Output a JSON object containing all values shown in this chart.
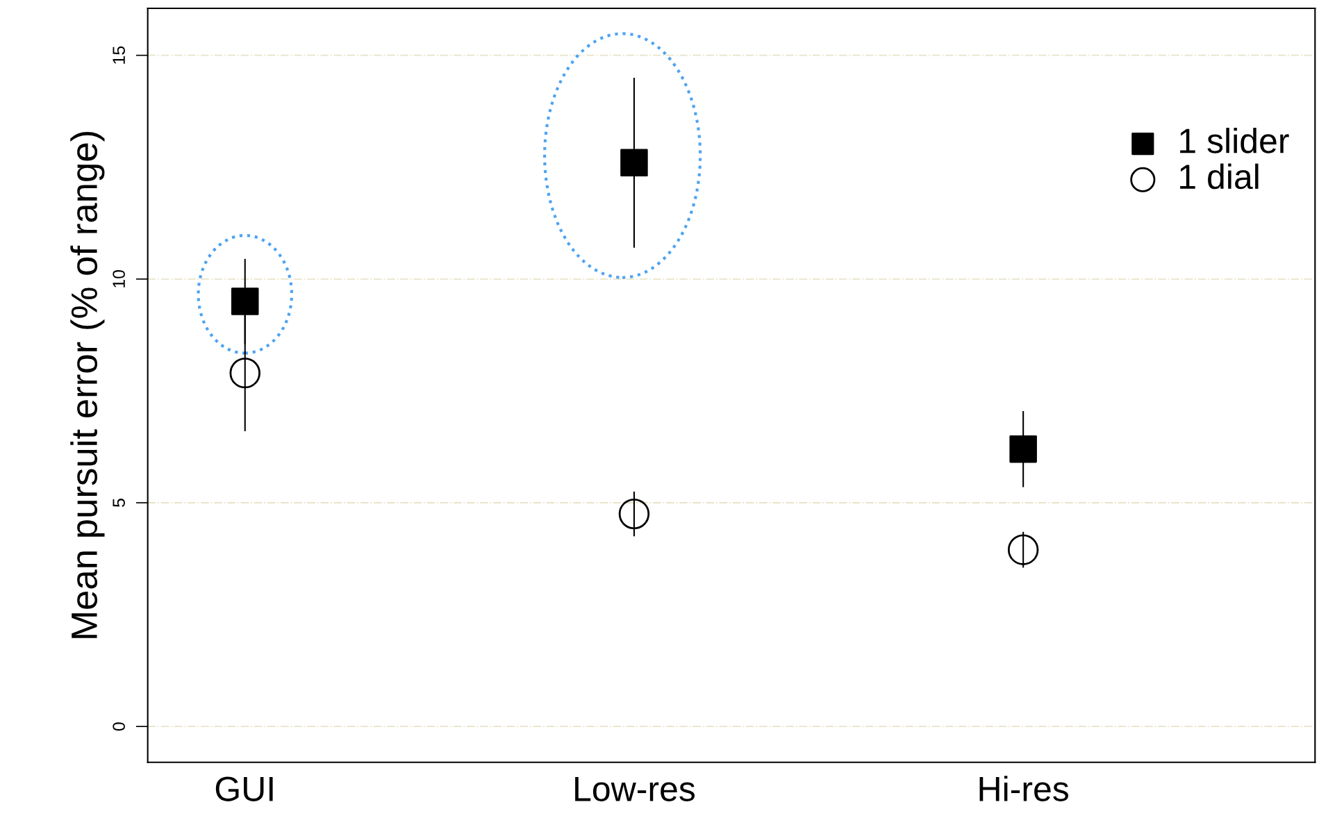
{
  "chart_data": {
    "type": "scatter",
    "ylabel": "Mean pursuit error (% of range)",
    "categories": [
      "GUI",
      "Low-res",
      "Hi-res"
    ],
    "series": [
      {
        "name": "1 slider",
        "color": "#000000",
        "marker": "square",
        "values": [
          9.5,
          12.6,
          6.2
        ],
        "errors": [
          0.95,
          1.9,
          0.85
        ]
      },
      {
        "name": "1 dial",
        "color": "#000000",
        "marker": "circle",
        "values": [
          7.9,
          4.75,
          3.95
        ],
        "errors": [
          1.3,
          0.5,
          0.4
        ]
      }
    ],
    "ylim": [
      -0.8,
      16.05
    ],
    "yticks": [
      0,
      5,
      10,
      15
    ],
    "grid": "y",
    "legend": "top right"
  }
}
